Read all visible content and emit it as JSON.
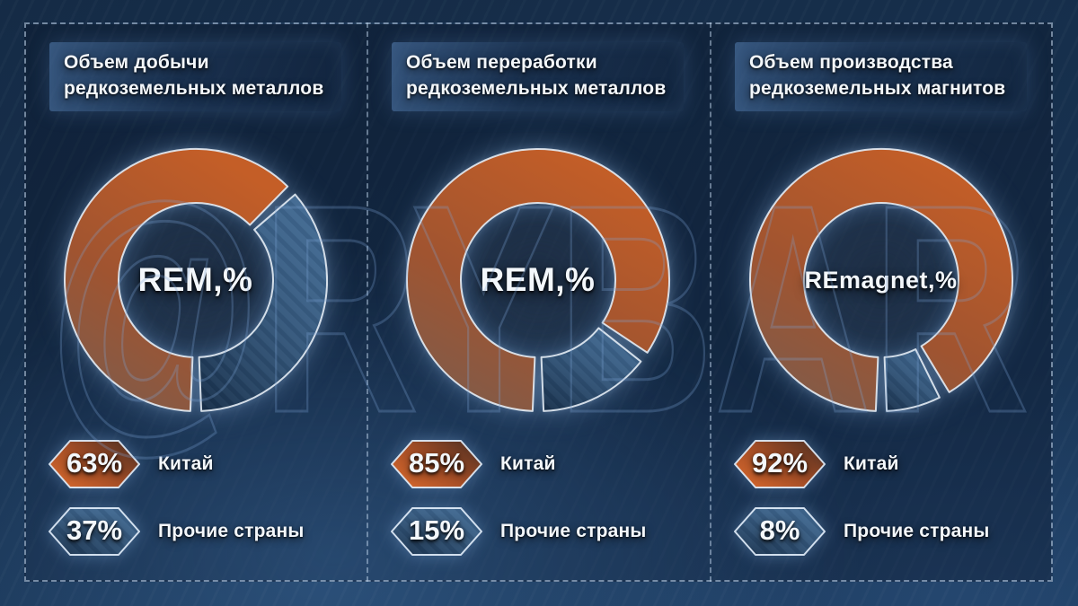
{
  "watermark": "@RYBAR",
  "colors": {
    "china_orange": "#c45e27",
    "others_blue": "#2e5070",
    "background_navy": "#17314f",
    "segment_stroke": "#e6edf5",
    "dashed_border": "#c3d7ee"
  },
  "panels": [
    {
      "title_line1": "Объем добычи",
      "title_line2": "редкоземельных металлов",
      "center_label": "REM,%",
      "legend": [
        {
          "pct": "63%",
          "label": "Китай"
        },
        {
          "pct": "37%",
          "label": "Прочие страны"
        }
      ]
    },
    {
      "title_line1": "Объем переработки",
      "title_line2": "редкоземельных металлов",
      "center_label": "REM,%",
      "legend": [
        {
          "pct": "85%",
          "label": "Китай"
        },
        {
          "pct": "15%",
          "label": "Прочие страны"
        }
      ]
    },
    {
      "title_line1": "Объем производства",
      "title_line2": "редкоземельных магнитов",
      "center_label": "REmagnet,%",
      "legend": [
        {
          "pct": "92%",
          "label": "Китай"
        },
        {
          "pct": "8%",
          "label": "Прочие страны"
        }
      ]
    }
  ],
  "chart_data": [
    {
      "type": "pie",
      "subtype": "donut",
      "title": "Объем добычи редкоземельных металлов",
      "center_label": "REM,%",
      "categories": [
        "Китай",
        "Прочие страны"
      ],
      "values": [
        63,
        37
      ],
      "units": "%",
      "legend_position": "bottom-left"
    },
    {
      "type": "pie",
      "subtype": "donut",
      "title": "Объем переработки редкоземельных металлов",
      "center_label": "REM,%",
      "categories": [
        "Китай",
        "Прочие страны"
      ],
      "values": [
        85,
        15
      ],
      "units": "%",
      "legend_position": "bottom-left"
    },
    {
      "type": "pie",
      "subtype": "donut",
      "title": "Объем производства редкоземельных магнитов",
      "center_label": "REmagnet,%",
      "categories": [
        "Китай",
        "Прочие страны"
      ],
      "values": [
        92,
        8
      ],
      "units": "%",
      "legend_position": "bottom-left"
    }
  ]
}
